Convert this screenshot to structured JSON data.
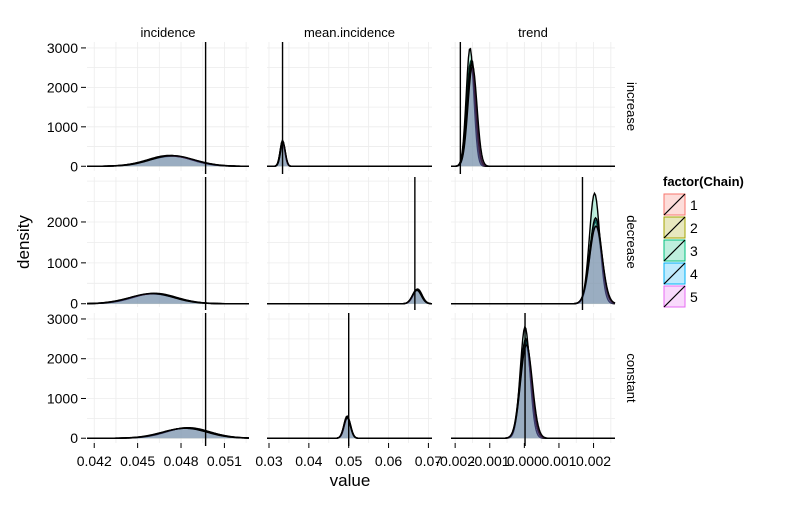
{
  "chart_data": {
    "type": "area",
    "title": "",
    "xlabel": "value",
    "ylabel": "density",
    "grid": true,
    "legend_position": "right",
    "legend": {
      "title": "factor(Chain)",
      "items": [
        {
          "label": "1",
          "color": "#F8766D"
        },
        {
          "label": "2",
          "color": "#A3A500"
        },
        {
          "label": "3",
          "color": "#00BF7D"
        },
        {
          "label": "4",
          "color": "#00B0F6"
        },
        {
          "label": "5",
          "color": "#E76BF3"
        }
      ]
    },
    "columns": [
      {
        "name": "incidence",
        "xlim": [
          0.0415,
          0.0527
        ],
        "ticks": [
          0.042,
          0.045,
          0.048,
          0.051
        ],
        "tick_labels": [
          "0.042",
          "0.045",
          "0.048",
          "0.051"
        ]
      },
      {
        "name": "mean.incidence",
        "xlim": [
          0.0295,
          0.0709
        ],
        "ticks": [
          0.03,
          0.04,
          0.05,
          0.06,
          0.07
        ],
        "tick_labels": [
          "0.03",
          "0.04",
          "0.05",
          "0.06",
          "0.07"
        ]
      },
      {
        "name": "trend",
        "xlim": [
          -0.00212,
          0.00262
        ],
        "ticks": [
          -0.002,
          -0.001,
          0.0,
          0.001,
          0.002
        ],
        "tick_labels": [
          "-0.002",
          "-0.001",
          "0.000",
          "0.001",
          "0.002"
        ]
      }
    ],
    "rows": [
      {
        "name": "increase",
        "ylim": [
          -120,
          3150
        ],
        "ticks": [
          0,
          1000,
          2000,
          3000
        ],
        "tick_labels": [
          "0",
          "1000",
          "2000",
          "3000"
        ]
      },
      {
        "name": "decrease",
        "ylim": [
          -80,
          3100
        ],
        "ticks": [
          0,
          1000,
          2000
        ],
        "tick_labels": [
          "0",
          "1000",
          "2000"
        ]
      },
      {
        "name": "constant",
        "ylim": [
          -120,
          3150
        ],
        "ticks": [
          0,
          1000,
          2000,
          3000
        ],
        "tick_labels": [
          "0",
          "1000",
          "2000",
          "3000"
        ]
      }
    ],
    "panels": [
      {
        "row": "increase",
        "col": "incidence",
        "reference_line": 0.0497,
        "series": [
          {
            "chain": "1",
            "mean": 0.0473,
            "sd": 0.0015,
            "peak": 265
          },
          {
            "chain": "2",
            "mean": 0.0474,
            "sd": 0.0016,
            "peak": 255
          },
          {
            "chain": "3",
            "mean": 0.0472,
            "sd": 0.0015,
            "peak": 275
          },
          {
            "chain": "4",
            "mean": 0.0473,
            "sd": 0.0016,
            "peak": 260
          },
          {
            "chain": "5",
            "mean": 0.0474,
            "sd": 0.0015,
            "peak": 270
          }
        ]
      },
      {
        "row": "increase",
        "col": "mean.incidence",
        "reference_line": 0.0334,
        "series": [
          {
            "chain": "1",
            "mean": 0.0334,
            "sd": 0.0006,
            "peak": 640
          },
          {
            "chain": "2",
            "mean": 0.0335,
            "sd": 0.0006,
            "peak": 600
          },
          {
            "chain": "3",
            "mean": 0.0334,
            "sd": 0.0006,
            "peak": 660
          },
          {
            "chain": "4",
            "mean": 0.0334,
            "sd": 0.0006,
            "peak": 620
          },
          {
            "chain": "5",
            "mean": 0.0335,
            "sd": 0.0006,
            "peak": 610
          }
        ]
      },
      {
        "row": "increase",
        "col": "trend",
        "reference_line": -0.00185,
        "series": [
          {
            "chain": "1",
            "mean": -0.00155,
            "sd": 0.00012,
            "peak": 2650
          },
          {
            "chain": "2",
            "mean": -0.00152,
            "sd": 0.00012,
            "peak": 2700
          },
          {
            "chain": "3",
            "mean": -0.00157,
            "sd": 0.00011,
            "peak": 3000
          },
          {
            "chain": "4",
            "mean": -0.00153,
            "sd": 0.00012,
            "peak": 2600
          },
          {
            "chain": "5",
            "mean": -0.0015,
            "sd": 0.00013,
            "peak": 2550
          }
        ]
      },
      {
        "row": "decrease",
        "col": "incidence",
        "reference_line": 0.0497,
        "series": [
          {
            "chain": "1",
            "mean": 0.0461,
            "sd": 0.0015,
            "peak": 250
          },
          {
            "chain": "2",
            "mean": 0.046,
            "sd": 0.0016,
            "peak": 240
          },
          {
            "chain": "3",
            "mean": 0.0462,
            "sd": 0.0015,
            "peak": 255
          },
          {
            "chain": "4",
            "mean": 0.0461,
            "sd": 0.0016,
            "peak": 245
          },
          {
            "chain": "5",
            "mean": 0.046,
            "sd": 0.0015,
            "peak": 250
          }
        ]
      },
      {
        "row": "decrease",
        "col": "mean.incidence",
        "reference_line": 0.0666,
        "series": [
          {
            "chain": "1",
            "mean": 0.0672,
            "sd": 0.0011,
            "peak": 330
          },
          {
            "chain": "2",
            "mean": 0.0671,
            "sd": 0.0011,
            "peak": 350
          },
          {
            "chain": "3",
            "mean": 0.0673,
            "sd": 0.0011,
            "peak": 360
          },
          {
            "chain": "4",
            "mean": 0.0672,
            "sd": 0.0011,
            "peak": 340
          },
          {
            "chain": "5",
            "mean": 0.0671,
            "sd": 0.0011,
            "peak": 330
          }
        ]
      },
      {
        "row": "decrease",
        "col": "trend",
        "reference_line": 0.00168,
        "series": [
          {
            "chain": "1",
            "mean": 0.00205,
            "sd": 0.00017,
            "peak": 2000
          },
          {
            "chain": "2",
            "mean": 0.00207,
            "sd": 0.00017,
            "peak": 2050
          },
          {
            "chain": "3",
            "mean": 0.00203,
            "sd": 0.00015,
            "peak": 2700
          },
          {
            "chain": "4",
            "mean": 0.00206,
            "sd": 0.00017,
            "peak": 2100
          },
          {
            "chain": "5",
            "mean": 0.00207,
            "sd": 0.00018,
            "peak": 1900
          }
        ]
      },
      {
        "row": "constant",
        "col": "incidence",
        "reference_line": 0.0497,
        "series": [
          {
            "chain": "1",
            "mean": 0.0484,
            "sd": 0.0015,
            "peak": 260
          },
          {
            "chain": "2",
            "mean": 0.0483,
            "sd": 0.0016,
            "peak": 250
          },
          {
            "chain": "3",
            "mean": 0.0485,
            "sd": 0.0015,
            "peak": 265
          },
          {
            "chain": "4",
            "mean": 0.0484,
            "sd": 0.0016,
            "peak": 255
          },
          {
            "chain": "5",
            "mean": 0.0483,
            "sd": 0.0015,
            "peak": 250
          }
        ]
      },
      {
        "row": "constant",
        "col": "mean.incidence",
        "reference_line": 0.05,
        "series": [
          {
            "chain": "1",
            "mean": 0.0496,
            "sd": 0.0008,
            "peak": 540
          },
          {
            "chain": "2",
            "mean": 0.0497,
            "sd": 0.0008,
            "peak": 520
          },
          {
            "chain": "3",
            "mean": 0.0496,
            "sd": 0.0008,
            "peak": 560
          },
          {
            "chain": "4",
            "mean": 0.0497,
            "sd": 0.0008,
            "peak": 530
          },
          {
            "chain": "5",
            "mean": 0.0496,
            "sd": 0.0008,
            "peak": 520
          }
        ]
      },
      {
        "row": "constant",
        "col": "trend",
        "reference_line": 2e-05,
        "series": [
          {
            "chain": "1",
            "mean": 5e-05,
            "sd": 0.00016,
            "peak": 2450
          },
          {
            "chain": "2",
            "mean": 3e-05,
            "sd": 0.00016,
            "peak": 2400
          },
          {
            "chain": "3",
            "mean": 2e-05,
            "sd": 0.00014,
            "peak": 2800
          },
          {
            "chain": "4",
            "mean": 4e-05,
            "sd": 0.00016,
            "peak": 2500
          },
          {
            "chain": "5",
            "mean": 6e-05,
            "sd": 0.00017,
            "peak": 2350
          }
        ]
      }
    ]
  }
}
